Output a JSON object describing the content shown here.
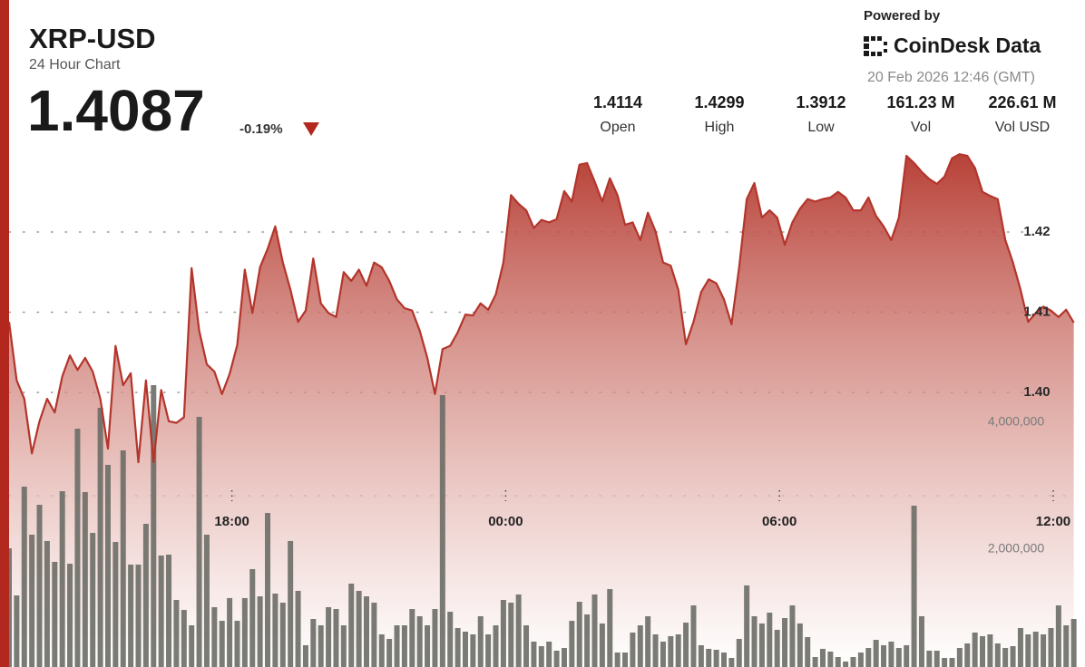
{
  "chart_data": {
    "type": "line",
    "title": "XRP-USD",
    "subtitle": "24 Hour Chart",
    "price": 1.4087,
    "change": "-0.19%",
    "powered_by": "Powered by",
    "brand": "CoinDesk Data",
    "timestamp": "20 Feb 2026 12:46 (GMT)",
    "stats": [
      {
        "value": "1.4114",
        "label": "Open"
      },
      {
        "value": "1.4299",
        "label": "High"
      },
      {
        "value": "1.3912",
        "label": "Low"
      },
      {
        "value": "161.23 M",
        "label": "Vol"
      },
      {
        "value": "226.61 M",
        "label": "Vol USD"
      }
    ],
    "x": [
      787,
      797,
      807,
      817,
      827,
      837,
      847,
      857,
      867,
      877,
      887,
      897,
      907,
      917,
      927,
      937,
      947,
      957,
      967,
      977,
      987,
      997,
      1007,
      1017,
      1027,
      1037,
      1047,
      1057,
      1067,
      1077,
      1087,
      1097,
      1107,
      1117,
      1127,
      1137,
      1147,
      1157,
      1167,
      1177,
      1187,
      1197,
      1207,
      1217,
      1227,
      1237,
      1247,
      1257,
      1267,
      1277,
      1287,
      1297,
      1307,
      1317,
      1327,
      1337,
      1347,
      1357,
      1367,
      1377,
      1387,
      1397,
      1407,
      1417,
      1427,
      1437,
      1447,
      1457,
      1467,
      1477,
      1487,
      1497,
      1507,
      1517,
      1527,
      1537,
      1547,
      1557,
      1567,
      1577,
      1587,
      1597,
      1607,
      1617,
      1627,
      1637,
      1647,
      1657,
      1667,
      1677,
      1687,
      1697,
      1707,
      1717,
      1727,
      1737,
      1747,
      1757,
      1767,
      1777,
      1787,
      1797,
      1807,
      1817,
      1827,
      1837,
      1847,
      1857,
      1867,
      1877,
      1887,
      1897,
      1907,
      1917,
      1927,
      1937,
      1947,
      1957,
      1967,
      1977,
      1987,
      1997,
      2007,
      2017,
      2027,
      2037,
      2047,
      2057,
      2067,
      2077,
      2087,
      2097,
      2107,
      2117,
      2127,
      2137,
      2147,
      2157,
      2167,
      2177,
      2187
    ],
    "xlim": [
      787,
      2197
    ],
    "xticks": [
      {
        "value": 1080,
        "label": "18:00"
      },
      {
        "value": 1440,
        "label": "00:00"
      },
      {
        "value": 1800,
        "label": "06:00"
      },
      {
        "value": 2160,
        "label": "12:00"
      }
    ],
    "ylim": [
      1.365,
      1.43
    ],
    "yticks": [
      {
        "value": 1.4,
        "label": "1.40"
      },
      1.41,
      1.42
    ],
    "y2lim": [
      0,
      8000000
    ],
    "y2ticks": [
      {
        "value": 2000000,
        "label": "2,000,000"
      },
      {
        "value": 4000000,
        "label": "4,000,000"
      }
    ],
    "grid": true,
    "series": [
      {
        "type": "area",
        "color": "#b3352b",
        "values": [
          1.4088,
          1.4015,
          1.3992,
          1.3924,
          1.3964,
          1.3992,
          1.3975,
          1.402,
          1.4046,
          1.4028,
          1.4043,
          1.4026,
          1.3992,
          1.393,
          1.4058,
          1.4009,
          1.4024,
          1.3913,
          1.4015,
          1.3913,
          1.4003,
          1.3964,
          1.3962,
          1.3969,
          1.4155,
          1.4077,
          1.4035,
          1.4026,
          1.3998,
          1.4023,
          1.4059,
          1.4153,
          1.4099,
          1.4156,
          1.4179,
          1.4207,
          1.4162,
          1.4128,
          1.4088,
          1.4102,
          1.4167,
          1.4111,
          1.4099,
          1.4094,
          1.415,
          1.4139,
          1.4153,
          1.4133,
          1.4162,
          1.4156,
          1.4139,
          1.4116,
          1.4105,
          1.4102,
          1.4077,
          1.4043,
          1.3998,
          1.4054,
          1.4058,
          1.4075,
          1.4097,
          1.4096,
          1.4111,
          1.4103,
          1.4122,
          1.4162,
          1.4246,
          1.4235,
          1.4227,
          1.4205,
          1.4215,
          1.4212,
          1.4216,
          1.4251,
          1.4238,
          1.4284,
          1.4286,
          1.4263,
          1.4238,
          1.4267,
          1.4246,
          1.4209,
          1.4212,
          1.419,
          1.4224,
          1.4201,
          1.4162,
          1.4158,
          1.4128,
          1.406,
          1.4088,
          1.4125,
          1.4141,
          1.4136,
          1.4116,
          1.4085,
          1.4156,
          1.4241,
          1.4261,
          1.4218,
          1.4227,
          1.4218,
          1.4184,
          1.4212,
          1.4229,
          1.4241,
          1.4238,
          1.4241,
          1.4243,
          1.425,
          1.4243,
          1.4227,
          1.4227,
          1.4243,
          1.422,
          1.4207,
          1.419,
          1.4218,
          1.4295,
          1.4286,
          1.4275,
          1.4266,
          1.426,
          1.4269,
          1.4292,
          1.4297,
          1.4295,
          1.428,
          1.425,
          1.4245,
          1.4241,
          1.419,
          1.4162,
          1.4128,
          1.4088,
          1.4099,
          1.4107,
          1.4102,
          1.4094,
          1.4103,
          1.4087
        ]
      },
      {
        "type": "bar",
        "axis": "y2",
        "color": "#6c6d66",
        "values": [
          2014000,
          1271000,
          2986000,
          2229000,
          2700000,
          2129000,
          1800000,
          2914000,
          1771000,
          3900000,
          2900000,
          2257000,
          4229000,
          3329000,
          2114000,
          3557000,
          1757000,
          1757000,
          2400000,
          4586000,
          1900000,
          1914000,
          1200000,
          1043000,
          800000,
          4086000,
          2229000,
          1086000,
          871000,
          1229000,
          871000,
          1229000,
          1686000,
          1257000,
          2571000,
          1300000,
          1157000,
          2129000,
          1343000,
          486000,
          900000,
          800000,
          1086000,
          1057000,
          800000,
          1457000,
          1343000,
          1257000,
          1157000,
          657000,
          586000,
          800000,
          800000,
          1057000,
          943000,
          800000,
          1057000,
          4429000,
          1014000,
          757000,
          700000,
          657000,
          943000,
          657000,
          800000,
          1200000,
          1157000,
          1286000,
          800000,
          543000,
          471000,
          543000,
          400000,
          443000,
          871000,
          1171000,
          971000,
          1286000,
          829000,
          1371000,
          371000,
          371000,
          686000,
          800000,
          943000,
          657000,
          543000,
          629000,
          657000,
          843000,
          1114000,
          486000,
          429000,
          414000,
          371000,
          286000,
          586000,
          1429000,
          943000,
          829000,
          1000000,
          729000,
          914000,
          1114000,
          829000,
          614000,
          300000,
          429000,
          386000,
          300000,
          229000,
          300000,
          371000,
          443000,
          571000,
          486000,
          543000,
          443000,
          486000,
          2686000,
          943000,
          400000,
          400000,
          286000,
          286000,
          443000,
          514000,
          686000,
          629000,
          657000,
          514000,
          443000,
          471000,
          757000,
          657000,
          700000,
          657000,
          757000,
          1114000,
          800000,
          900000
        ]
      }
    ]
  }
}
